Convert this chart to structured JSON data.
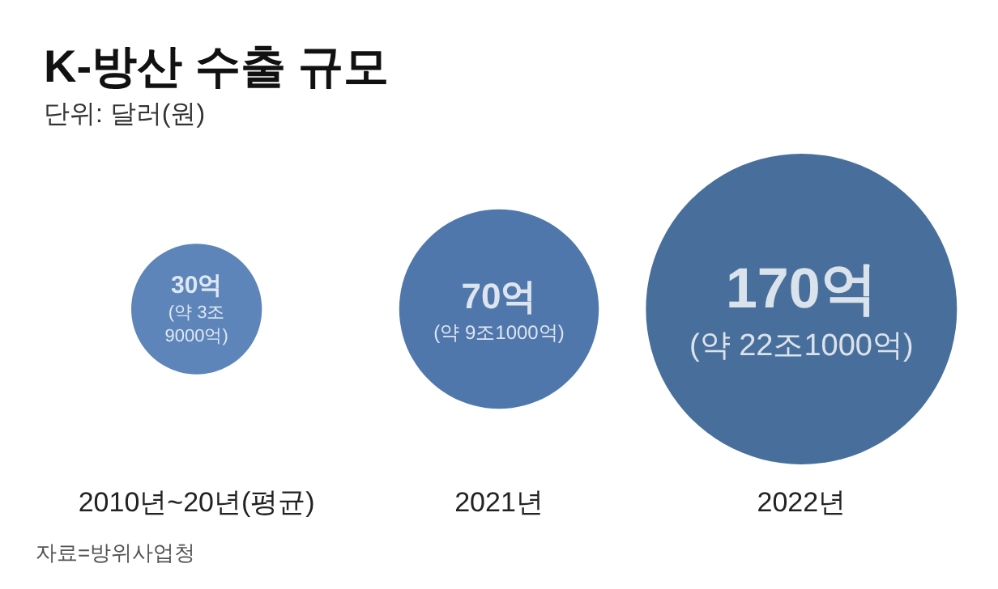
{
  "chart_data": {
    "type": "other",
    "title": "K-방산 수출 규모",
    "subtitle": "단위: 달러(원)",
    "categories": [
      "2010년~20년(평균)",
      "2021년",
      "2022년"
    ],
    "values": [
      30,
      70,
      170
    ],
    "value_labels": [
      "30억\n(약 3조\n9000억)",
      "70억\n(약 9조1000억)",
      "170억\n(약 22조1000억)"
    ],
    "colors": [
      "#3566a8",
      "#245597",
      "#1a4a82"
    ],
    "annotations": [
      "자료=방위사업청"
    ]
  }
}
